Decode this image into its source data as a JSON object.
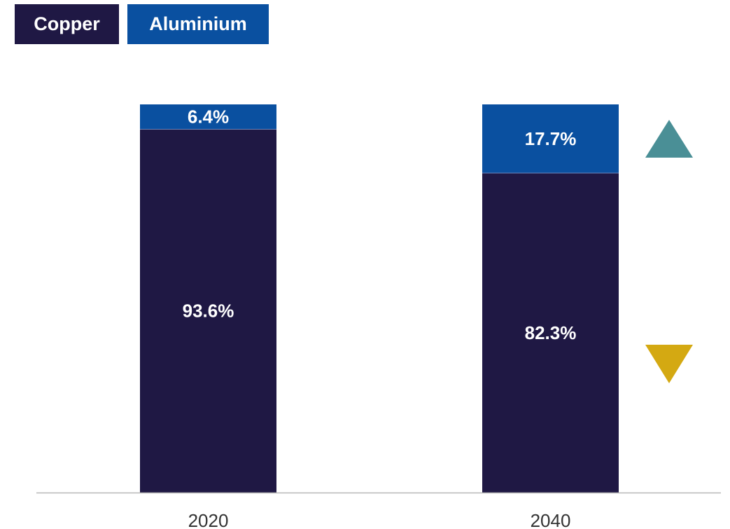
{
  "legend": [
    {
      "label": "Copper",
      "color": "#1f1844"
    },
    {
      "label": "Aluminium",
      "color": "#0a50a0"
    }
  ],
  "chart_data": {
    "type": "bar",
    "stacked": true,
    "categories": [
      "2020",
      "2040"
    ],
    "series": [
      {
        "name": "Copper",
        "values": [
          93.6,
          82.3
        ],
        "labels": [
          "93.6%",
          "82.3%"
        ],
        "color": "#1f1844"
      },
      {
        "name": "Aluminium",
        "values": [
          6.4,
          17.7
        ],
        "labels": [
          "6.4%",
          "17.7%"
        ],
        "color": "#0a50a0"
      }
    ],
    "ylim": [
      0,
      100
    ],
    "title": "",
    "xlabel": "",
    "ylabel": "",
    "grid": false,
    "legend_position": "top-left",
    "indicators": [
      {
        "series": "Aluminium",
        "direction": "up",
        "color": "#4a8f96",
        "icon": "up-triangle-icon"
      },
      {
        "series": "Copper",
        "direction": "down",
        "color": "#d4a912",
        "icon": "down-triangle-icon"
      }
    ]
  }
}
